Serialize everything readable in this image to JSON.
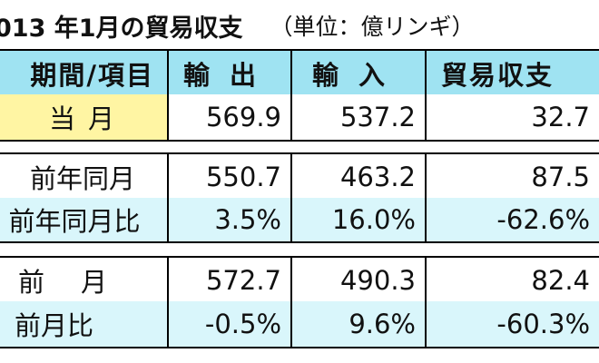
{
  "title": {
    "text": "013 年1月の貿易収支",
    "unit": "（単位：億リンギ）"
  },
  "colors": {
    "header_bg": "#9fe3f2",
    "current_label_bg": "#fff5a3",
    "ratio_bg": "#d9f6fb",
    "plain_bg": "#ffffff",
    "border": "#000000"
  },
  "table": {
    "headers": [
      "期間/項目",
      "輸出",
      "輸入",
      "貿易収支"
    ],
    "rows": [
      {
        "label": "当月",
        "values": [
          "569.9",
          "537.2",
          "32.7"
        ],
        "style": "current"
      },
      {
        "label": "前年同月",
        "values": [
          "550.7",
          "463.2",
          "87.5"
        ],
        "style": "plain"
      },
      {
        "label": "前年同月比",
        "values": [
          "3.5%",
          "16.0%",
          "-62.6%"
        ],
        "style": "ratio"
      },
      {
        "label": "前月",
        "values": [
          "572.7",
          "490.3",
          "82.4"
        ],
        "style": "plain"
      },
      {
        "label": "前月比",
        "values": [
          "-0.5%",
          "9.6%",
          "-60.3%"
        ],
        "style": "ratio"
      }
    ]
  }
}
